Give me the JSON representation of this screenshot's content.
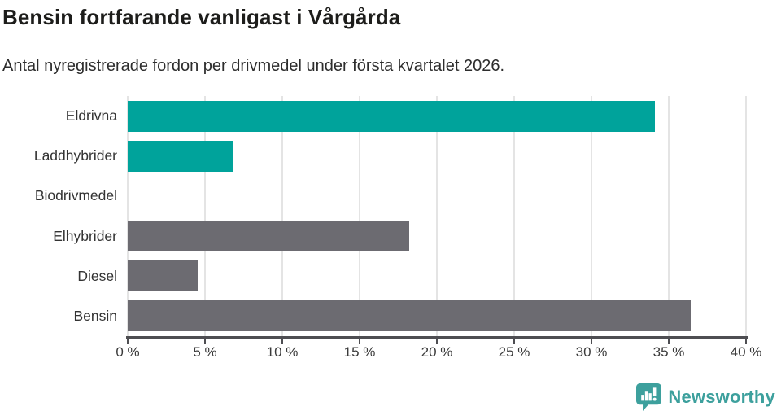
{
  "header": {
    "title": "Bensin fortfarande vanligast i Vårgårda",
    "subtitle": "Antal nyregistrerade fordon per drivmedel under första kvartalet 2026."
  },
  "chart_data": {
    "type": "bar",
    "orientation": "horizontal",
    "title": "Bensin fortfarande vanligast i Vårgårda",
    "subtitle": "Antal nyregistrerade fordon per drivmedel under första kvartalet 2026.",
    "categories": [
      "Eldrivna",
      "Laddhybrider",
      "Biodrivmedel",
      "Elhybrider",
      "Diesel",
      "Bensin"
    ],
    "values": [
      34.1,
      6.8,
      0,
      18.2,
      4.5,
      36.4
    ],
    "unit": "%",
    "xlim": [
      0,
      40
    ],
    "x_ticks": [
      {
        "value": 0,
        "label": "0 %"
      },
      {
        "value": 5,
        "label": "5 %"
      },
      {
        "value": 10,
        "label": "10 %"
      },
      {
        "value": 15,
        "label": "15 %"
      },
      {
        "value": 20,
        "label": "20 %"
      },
      {
        "value": 25,
        "label": "25 %"
      },
      {
        "value": 30,
        "label": "30 %"
      },
      {
        "value": 35,
        "label": "35 %"
      },
      {
        "value": 40,
        "label": "40 %"
      }
    ],
    "bar_colors": [
      "#00a39b",
      "#00a39b",
      "#00a39b",
      "#6c6b71",
      "#6c6b71",
      "#6c6b71"
    ],
    "grid": "vertical",
    "legend": "none"
  },
  "footer": {
    "brand": "Newsworthy",
    "logo_icon": "newsworthy-speech-bubble-bar-chart-icon"
  },
  "colors": {
    "teal": "#00a39b",
    "gray": "#6c6b71",
    "logo_teal": "#3da09d",
    "gridline": "#e4e4e4",
    "axis": "#4e4e52",
    "title_text": "#1d1d1b",
    "body_text": "#333333",
    "background": "#ffffff"
  }
}
